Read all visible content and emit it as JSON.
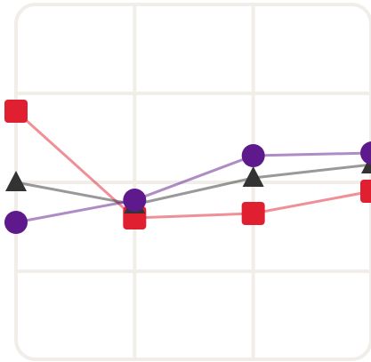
{
  "chart_data": {
    "type": "line",
    "title": "",
    "xlabel": "",
    "ylabel": "",
    "x": [
      0,
      1,
      2,
      3
    ],
    "xlim": [
      0,
      3
    ],
    "ylim": [
      0,
      4
    ],
    "grid": true,
    "legend": "none",
    "series": [
      {
        "values": [
          2.8,
          1.6,
          1.65,
          1.9
        ],
        "color": "#e02030",
        "marker": "square"
      },
      {
        "values": [
          2.0,
          1.75,
          2.05,
          2.2
        ],
        "color": "#333333",
        "marker": "triangle"
      },
      {
        "values": [
          1.55,
          1.8,
          2.3,
          2.33
        ],
        "color": "#5e1a8c",
        "marker": "circle"
      }
    ]
  },
  "colors": {
    "grid": "#f1eee9",
    "frame": "#f1eee9"
  }
}
